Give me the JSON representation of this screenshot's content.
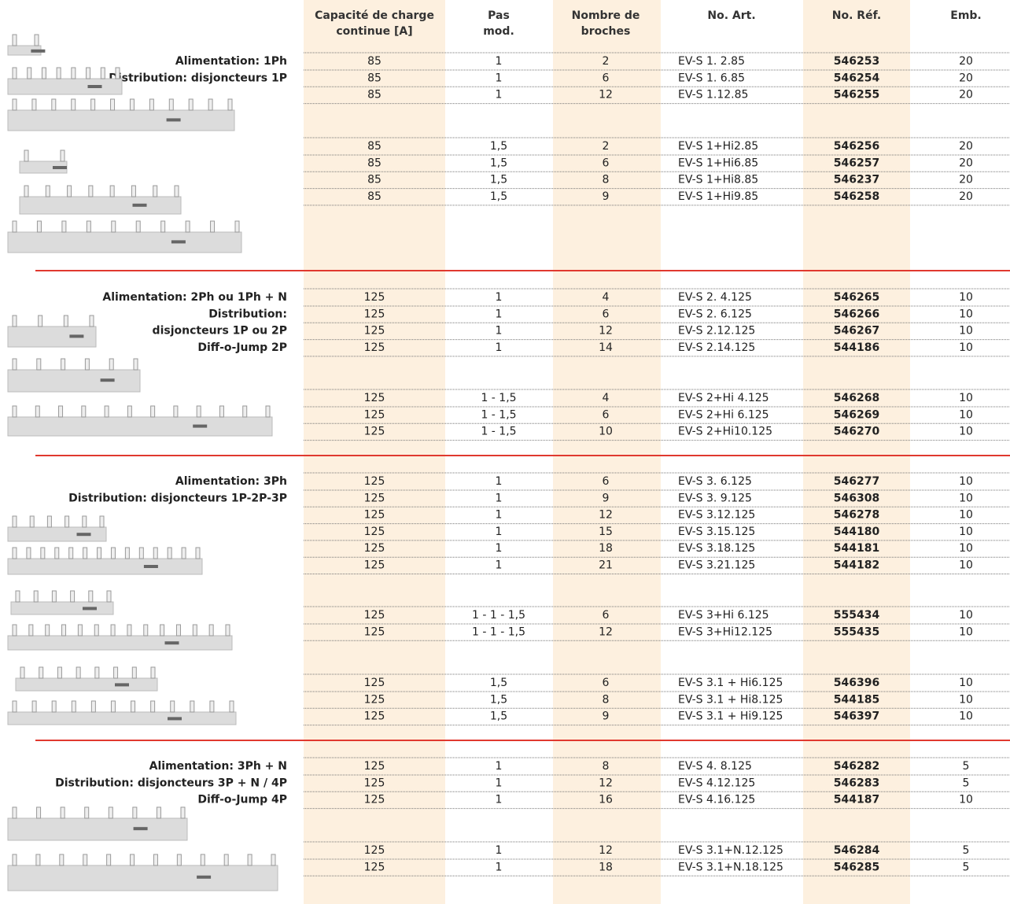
{
  "header": {
    "columns": [
      [
        "Capacité de charge",
        "continue [A]"
      ],
      [
        "Pas",
        "mod."
      ],
      [
        "Nombre de",
        "broches"
      ],
      [
        "No. Art."
      ],
      [
        "No. Réf."
      ],
      [
        "Emb."
      ]
    ]
  },
  "groups": [
    {
      "description": [
        "Alimentation: 1Ph",
        "Distribution: disjoncteurs 1P"
      ],
      "subgroups": [
        [
          [
            "85",
            "1",
            "2",
            "EV-S 1. 2.85",
            "546253",
            "20"
          ],
          [
            "85",
            "1",
            "6",
            "EV-S 1. 6.85",
            "546254",
            "20"
          ],
          [
            "85",
            "1",
            "12",
            "EV-S 1.12.85",
            "546255",
            "20"
          ]
        ],
        [
          [
            "85",
            "1,5",
            "2",
            "EV-S 1+Hi2.85",
            "546256",
            "20"
          ],
          [
            "85",
            "1,5",
            "6",
            "EV-S 1+Hi6.85",
            "546257",
            "20"
          ],
          [
            "85",
            "1,5",
            "8",
            "EV-S 1+Hi8.85",
            "546237",
            "20"
          ],
          [
            "85",
            "1,5",
            "9",
            "EV-S 1+Hi9.85",
            "546258",
            "20"
          ]
        ]
      ]
    },
    {
      "description": [
        "Alimentation: 2Ph ou 1Ph + N",
        "Distribution:",
        "disjoncteurs 1P ou 2P",
        "Diff-o-Jump 2P"
      ],
      "subgroups": [
        [
          [
            "125",
            "1",
            "4",
            "EV-S 2. 4.125",
            "546265",
            "10"
          ],
          [
            "125",
            "1",
            "6",
            "EV-S 2. 6.125",
            "546266",
            "10"
          ],
          [
            "125",
            "1",
            "12",
            "EV-S 2.12.125",
            "546267",
            "10"
          ],
          [
            "125",
            "1",
            "14",
            "EV-S 2.14.125",
            "544186",
            "10"
          ]
        ],
        [
          [
            "125",
            "1 - 1,5",
            "4",
            "EV-S 2+Hi 4.125",
            "546268",
            "10"
          ],
          [
            "125",
            "1 - 1,5",
            "6",
            "EV-S 2+Hi 6.125",
            "546269",
            "10"
          ],
          [
            "125",
            "1 - 1,5",
            "10",
            "EV-S 2+Hi10.125",
            "546270",
            "10"
          ]
        ]
      ]
    },
    {
      "description": [
        "Alimentation: 3Ph",
        "Distribution: disjoncteurs 1P-2P-3P"
      ],
      "subgroups": [
        [
          [
            "125",
            "1",
            "6",
            "EV-S 3. 6.125",
            "546277",
            "10"
          ],
          [
            "125",
            "1",
            "9",
            "EV-S 3. 9.125",
            "546308",
            "10"
          ],
          [
            "125",
            "1",
            "12",
            "EV-S 3.12.125",
            "546278",
            "10"
          ],
          [
            "125",
            "1",
            "15",
            "EV-S 3.15.125",
            "544180",
            "10"
          ],
          [
            "125",
            "1",
            "18",
            "EV-S 3.18.125",
            "544181",
            "10"
          ],
          [
            "125",
            "1",
            "21",
            "EV-S 3.21.125",
            "544182",
            "10"
          ]
        ],
        [
          [
            "125",
            "1 - 1 - 1,5",
            "6",
            "EV-S 3+Hi 6.125",
            "555434",
            "10"
          ],
          [
            "125",
            "1 - 1 - 1,5",
            "12",
            "EV-S 3+Hi12.125",
            "555435",
            "10"
          ]
        ],
        [
          [
            "125",
            "1,5",
            "6",
            "EV-S 3.1 + Hi6.125",
            "546396",
            "10"
          ],
          [
            "125",
            "1,5",
            "8",
            "EV-S 3.1 + Hi8.125",
            "544185",
            "10"
          ],
          [
            "125",
            "1,5",
            "9",
            "EV-S 3.1 + Hi9.125",
            "546397",
            "10"
          ]
        ]
      ]
    },
    {
      "description": [
        "Alimentation: 3Ph + N",
        "Distribution: disjoncteurs 3P + N / 4P",
        "Diff-o-Jump 4P"
      ],
      "subgroups": [
        [
          [
            "125",
            "1",
            "8",
            "EV-S 4. 8.125",
            "546282",
            "5"
          ],
          [
            "125",
            "1",
            "12",
            "EV-S 4.12.125",
            "546283",
            "5"
          ],
          [
            "125",
            "1",
            "16",
            "EV-S 4.16.125",
            "544187",
            "10"
          ]
        ],
        [
          [
            "125",
            "1",
            "12",
            "EV-S 3.1+N.12.125",
            "546284",
            "5"
          ],
          [
            "125",
            "1",
            "18",
            "EV-S 3.1+N.18.125",
            "546285",
            "5"
          ]
        ]
      ]
    }
  ]
}
